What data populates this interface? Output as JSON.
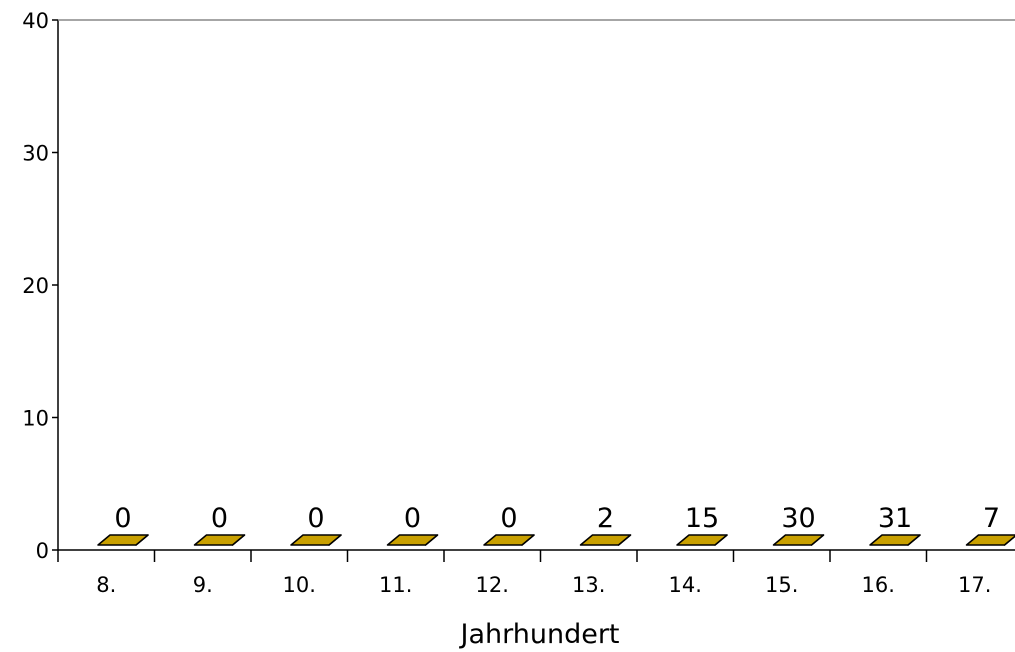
{
  "chart_data": {
    "type": "bar",
    "categories": [
      "8.",
      "9.",
      "10.",
      "11.",
      "12.",
      "13.",
      "14.",
      "15.",
      "16.",
      "17."
    ],
    "values": [
      0,
      0,
      0,
      0,
      0,
      2,
      15,
      30,
      31,
      7
    ],
    "data_labels": [
      "0",
      "0",
      "0",
      "0",
      "0",
      "2",
      "15",
      "30",
      "31",
      "7"
    ],
    "title": "",
    "xlabel": "Jahrhundert",
    "ylabel": "",
    "ylim": [
      0,
      40
    ],
    "yticks": [
      0,
      10,
      20,
      30,
      40
    ],
    "grid": false,
    "style": "3d",
    "colors": {
      "front": "#FFCC00",
      "top": "#C9A000",
      "side": "#6B5A08",
      "stroke": "#000000"
    }
  }
}
